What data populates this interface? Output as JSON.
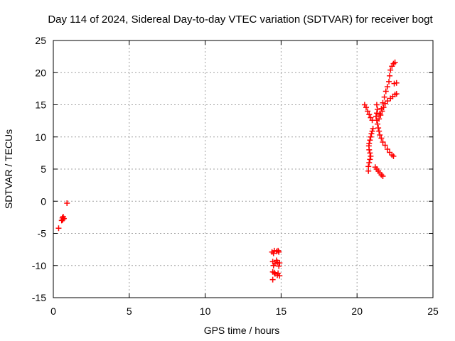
{
  "chart_data": {
    "type": "scatter",
    "title": "Day 114 of 2024, Sidereal Day-to-day VTEC variation (SDTVAR) for receiver bogt",
    "xlabel": "GPS time / hours",
    "ylabel": "SDTVAR / TECUs",
    "xlim": [
      0,
      25
    ],
    "ylim": [
      -15,
      25
    ],
    "xticks": [
      0,
      5,
      10,
      15,
      20,
      25
    ],
    "yticks": [
      -15,
      -10,
      -5,
      0,
      5,
      10,
      15,
      20,
      25
    ],
    "xtick_labels": [
      "0",
      "5",
      "10",
      "15",
      "20",
      "25"
    ],
    "ytick_labels": [
      "-15",
      "-10",
      "-5",
      "0",
      "5",
      "10",
      "15",
      "20",
      "25"
    ],
    "grid": true,
    "marker": "plus",
    "color": "#ff0000",
    "series": [
      {
        "points": [
          [
            0.35,
            -4.2
          ],
          [
            0.55,
            -3.0
          ],
          [
            0.6,
            -2.6
          ],
          [
            0.65,
            -2.4
          ],
          [
            0.7,
            -2.7
          ],
          [
            0.62,
            -2.9
          ],
          [
            0.9,
            -0.3
          ],
          [
            14.4,
            -7.9
          ],
          [
            14.55,
            -7.7
          ],
          [
            14.7,
            -7.8
          ],
          [
            14.85,
            -7.9
          ],
          [
            14.5,
            -8.1
          ],
          [
            14.8,
            -7.7
          ],
          [
            14.45,
            -9.4
          ],
          [
            14.6,
            -9.7
          ],
          [
            14.75,
            -9.5
          ],
          [
            14.9,
            -9.6
          ],
          [
            14.5,
            -10.0
          ],
          [
            14.7,
            -9.2
          ],
          [
            14.85,
            -10.1
          ],
          [
            14.45,
            -11.0
          ],
          [
            14.6,
            -11.3
          ],
          [
            14.75,
            -11.5
          ],
          [
            14.9,
            -11.6
          ],
          [
            14.55,
            -11.1
          ],
          [
            14.8,
            -11.2
          ],
          [
            14.45,
            -12.2
          ],
          [
            20.5,
            15.0
          ],
          [
            20.6,
            14.6
          ],
          [
            20.7,
            14.0
          ],
          [
            20.8,
            13.5
          ],
          [
            20.9,
            13.0
          ],
          [
            21.0,
            12.6
          ],
          [
            21.05,
            11.3
          ],
          [
            21.0,
            10.9
          ],
          [
            20.95,
            10.5
          ],
          [
            20.9,
            10.0
          ],
          [
            20.85,
            9.5
          ],
          [
            20.8,
            9.0
          ],
          [
            20.78,
            8.6
          ],
          [
            20.8,
            8.0
          ],
          [
            20.85,
            7.5
          ],
          [
            20.9,
            7.0
          ],
          [
            20.85,
            6.5
          ],
          [
            20.8,
            6.0
          ],
          [
            20.75,
            5.4
          ],
          [
            20.75,
            4.7
          ],
          [
            21.2,
            5.3
          ],
          [
            21.3,
            5.0
          ],
          [
            21.4,
            4.7
          ],
          [
            21.5,
            4.4
          ],
          [
            21.6,
            4.1
          ],
          [
            21.7,
            3.9
          ],
          [
            21.3,
            15.0
          ],
          [
            21.35,
            14.3
          ],
          [
            21.3,
            13.7
          ],
          [
            21.25,
            13.2
          ],
          [
            21.3,
            12.6
          ],
          [
            21.35,
            12.0
          ],
          [
            21.4,
            11.4
          ],
          [
            21.45,
            10.9
          ],
          [
            21.5,
            10.3
          ],
          [
            21.6,
            9.8
          ],
          [
            21.7,
            9.2
          ],
          [
            21.85,
            8.7
          ],
          [
            22.0,
            8.1
          ],
          [
            22.15,
            7.6
          ],
          [
            22.3,
            7.2
          ],
          [
            22.4,
            7.0
          ],
          [
            21.45,
            12.8
          ],
          [
            21.55,
            13.4
          ],
          [
            21.65,
            14.0
          ],
          [
            21.75,
            14.6
          ],
          [
            21.85,
            15.2
          ],
          [
            22.0,
            15.6
          ],
          [
            22.2,
            16.0
          ],
          [
            22.35,
            16.3
          ],
          [
            22.5,
            16.6
          ],
          [
            22.6,
            16.7
          ],
          [
            21.5,
            13.6
          ],
          [
            21.6,
            14.4
          ],
          [
            21.7,
            15.3
          ],
          [
            21.8,
            16.2
          ],
          [
            21.9,
            17.1
          ],
          [
            22.0,
            17.8
          ],
          [
            22.1,
            18.6
          ],
          [
            22.15,
            19.5
          ],
          [
            22.2,
            20.4
          ],
          [
            22.3,
            21.0
          ],
          [
            22.4,
            21.4
          ],
          [
            22.5,
            21.6
          ],
          [
            22.45,
            18.3
          ],
          [
            22.6,
            18.4
          ]
        ]
      }
    ]
  }
}
